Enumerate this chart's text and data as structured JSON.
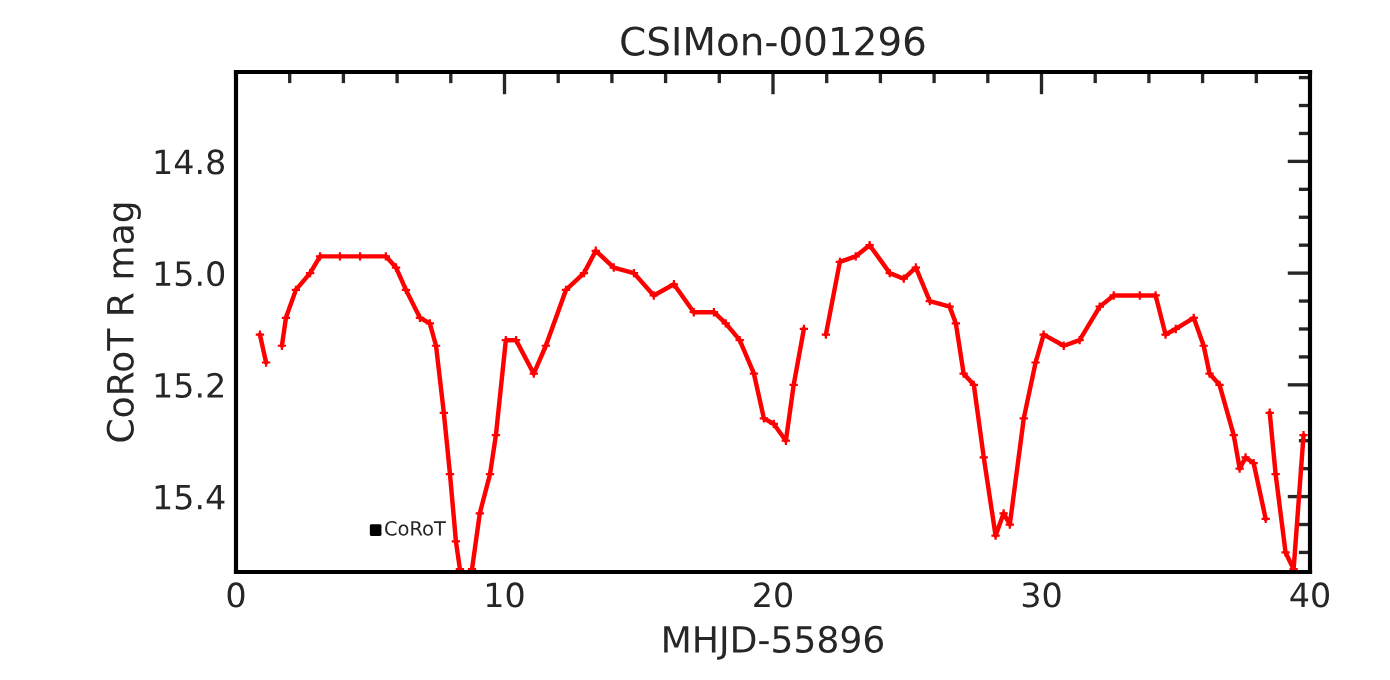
{
  "chart_data": {
    "type": "line",
    "title": "CSIMon-001296",
    "xlabel": "MHJD-55896",
    "ylabel": "CoRoT R mag",
    "xlim": [
      0,
      40
    ],
    "ylim": [
      15.535,
      14.64
    ],
    "xticks": [
      0,
      {
        "value": 2,
        "label": null
      },
      {
        "value": 4,
        "label": null
      },
      {
        "value": 6,
        "label": null
      },
      {
        "value": 8,
        "label": null
      },
      10,
      {
        "value": 12,
        "label": null
      },
      {
        "value": 14,
        "label": null
      },
      {
        "value": 16,
        "label": null
      },
      {
        "value": 18,
        "label": null
      },
      20,
      {
        "value": 22,
        "label": null
      },
      {
        "value": 24,
        "label": null
      },
      {
        "value": 26,
        "label": null
      },
      {
        "value": 28,
        "label": null
      },
      30,
      {
        "value": 32,
        "label": null
      },
      {
        "value": 34,
        "label": null
      },
      {
        "value": 36,
        "label": null
      },
      {
        "value": 38,
        "label": null
      },
      40
    ],
    "yticks": [
      {
        "value": 14.65,
        "label": null
      },
      {
        "value": 14.7,
        "label": null
      },
      {
        "value": 14.75,
        "label": null
      },
      14.8,
      {
        "value": 14.85,
        "label": null
      },
      {
        "value": 14.9,
        "label": null
      },
      {
        "value": 14.95,
        "label": null
      },
      {
        "value": 15,
        "label": "15.0"
      },
      {
        "value": 15.05,
        "label": null
      },
      {
        "value": 15.1,
        "label": null
      },
      {
        "value": 15.15,
        "label": null
      },
      15.2,
      {
        "value": 15.25,
        "label": null
      },
      {
        "value": 15.3,
        "label": null
      },
      {
        "value": 15.35,
        "label": null
      },
      15.4,
      {
        "value": 15.45,
        "label": null
      },
      {
        "value": 15.5,
        "label": null
      }
    ],
    "grid": false,
    "legend": false,
    "series": [
      {
        "color": "#ff0000",
        "marker": "cross",
        "x": [
          0.89,
          1.12,
          1.4,
          1.71,
          1.86,
          2.23,
          2.76,
          3.13,
          3.87,
          4.62,
          5.58,
          5.96,
          6.33,
          6.85,
          7.22,
          7.45,
          7.74,
          7.97,
          8.19,
          8.34,
          8.6,
          8.79,
          9.08,
          9.46,
          9.68,
          10.05,
          10.43,
          11.09,
          11.54,
          12.29,
          12.96,
          13.4,
          14.07,
          14.82,
          15.56,
          16.31,
          17.05,
          17.8,
          18.24,
          18.76,
          19.29,
          19.66,
          20.03,
          20.48,
          20.77,
          21.15,
          21.5,
          21.97,
          22.49,
          23.08,
          23.6,
          24.35,
          24.87,
          25.32,
          25.84,
          26.58,
          26.81,
          27.1,
          27.48,
          27.85,
          28.29,
          28.59,
          28.82,
          29.34,
          29.78,
          30.08,
          30.83,
          31.42,
          32.17,
          32.69,
          33.66,
          34.25,
          34.62,
          35.0,
          35.67,
          36.04,
          36.26,
          36.63,
          37.16,
          37.38,
          37.6,
          37.9,
          38.35,
          38.42,
          38.5,
          38.72,
          39.09,
          39.39,
          39.76
        ],
        "values": [
          15.11,
          15.16,
          null,
          15.13,
          15.08,
          15.03,
          15.0,
          14.97,
          14.97,
          14.97,
          14.97,
          14.99,
          15.03,
          15.08,
          15.09,
          15.13,
          15.25,
          15.36,
          15.48,
          15.53,
          null,
          15.53,
          15.43,
          15.36,
          15.29,
          15.12,
          15.12,
          15.18,
          15.13,
          15.03,
          15.0,
          14.96,
          14.99,
          15.0,
          15.04,
          15.02,
          15.07,
          15.07,
          15.09,
          15.12,
          15.18,
          15.26,
          15.27,
          15.3,
          15.2,
          15.1,
          null,
          15.11,
          14.98,
          14.97,
          14.95,
          15.0,
          15.01,
          14.99,
          15.05,
          15.06,
          15.09,
          15.18,
          15.2,
          15.33,
          15.47,
          15.43,
          15.45,
          15.26,
          15.16,
          15.11,
          15.13,
          15.12,
          15.06,
          15.04,
          15.04,
          15.04,
          15.11,
          15.1,
          15.08,
          15.13,
          15.18,
          15.2,
          15.29,
          15.35,
          15.33,
          15.34,
          15.44,
          null,
          15.25,
          15.36,
          15.5,
          15.53,
          15.29
        ]
      },
      {
        "type": "scatter",
        "name": "CoRoT",
        "color": "#000000",
        "marker": "square",
        "x": [
          5.2
        ],
        "values": [
          15.46
        ],
        "errors": [
          0.006
        ]
      }
    ]
  }
}
